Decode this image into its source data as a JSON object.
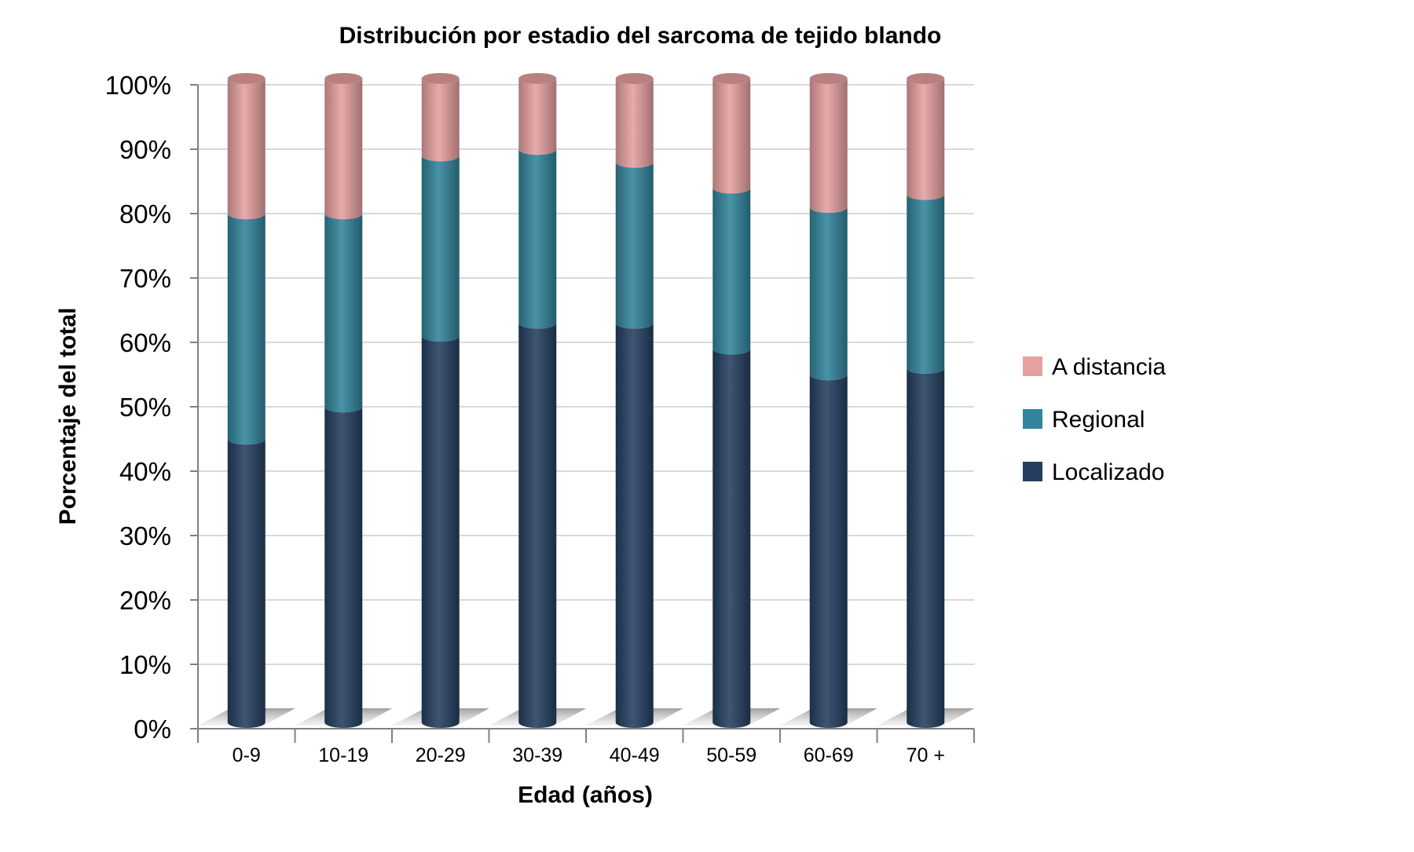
{
  "chart_data": {
    "type": "bar",
    "stacked": true,
    "percent_stacked": true,
    "title": "Distribución por estadio del sarcoma de tejido blando",
    "xlabel": "Edad (años)",
    "ylabel": "Porcentaje del total",
    "categories": [
      "0-9",
      "10-19",
      "20-29",
      "30-39",
      "40-49",
      "50-59",
      "60-69",
      "70 +"
    ],
    "y_ticks": [
      "0%",
      "10%",
      "20%",
      "30%",
      "40%",
      "50%",
      "60%",
      "70%",
      "80%",
      "90%",
      "100%"
    ],
    "ylim": [
      0,
      100
    ],
    "grid": true,
    "legend_position": "right",
    "series": [
      {
        "name": "Localizado",
        "color": "#243F60",
        "values": [
          44,
          49,
          60,
          62,
          62,
          58,
          54,
          55
        ]
      },
      {
        "name": "Regional",
        "color": "#31849B",
        "values": [
          35,
          30,
          28,
          27,
          25,
          25,
          26,
          27
        ]
      },
      {
        "name": "A distancia",
        "color": "#E6A0A0",
        "values": [
          21,
          21,
          12,
          11,
          13,
          17,
          20,
          18
        ]
      }
    ]
  }
}
